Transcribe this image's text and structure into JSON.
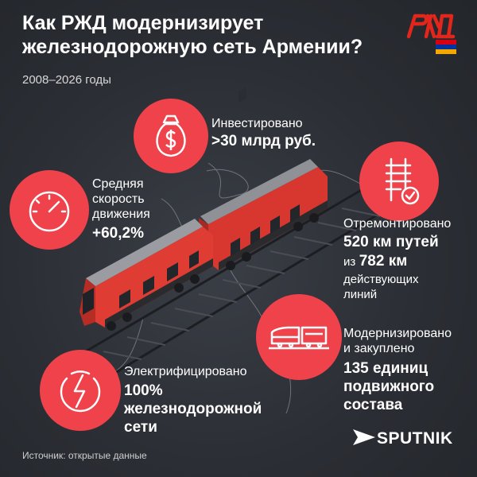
{
  "header": {
    "title_line1": "Как РЖД модернизирует",
    "title_line2": "железнодорожную сеть Армении?",
    "period": "2008–2026 годы"
  },
  "brand": {
    "logo_icon": "rzd-logo",
    "flag_icon": "armenia-flag"
  },
  "colors": {
    "accent": "#f0424a",
    "background": "#2b2e34",
    "flag": [
      "#d90012",
      "#0033a0",
      "#f2a800"
    ]
  },
  "facts": {
    "investment": {
      "icon": "money-bag-icon",
      "label": "Инвестировано",
      "value": ">30 млрд руб."
    },
    "speed": {
      "icon": "speedometer-icon",
      "label_lines": [
        "Средняя",
        "скорость",
        "движения"
      ],
      "value": "+60,2%"
    },
    "tracks": {
      "icon": "rail-track-check-icon",
      "label": "Отремонтировано",
      "value_main": "520 км путей",
      "value_prefix": "из",
      "value_sub": "782 км",
      "label_tail_lines": [
        "действующих",
        "линий"
      ]
    },
    "rolling_stock": {
      "icon": "train-icon",
      "label_lines": [
        "Модернизировано",
        "и закуплено"
      ],
      "value_lines": [
        "135 единиц",
        "подвижного",
        "состава"
      ]
    },
    "electrification": {
      "icon": "lightning-icon",
      "label": "Электрифицировано",
      "value_lines": [
        "100%",
        "железнодорожной",
        "сети"
      ]
    }
  },
  "footer": {
    "source": "Источник: открытые данные",
    "brand": "SPUTNIK"
  }
}
